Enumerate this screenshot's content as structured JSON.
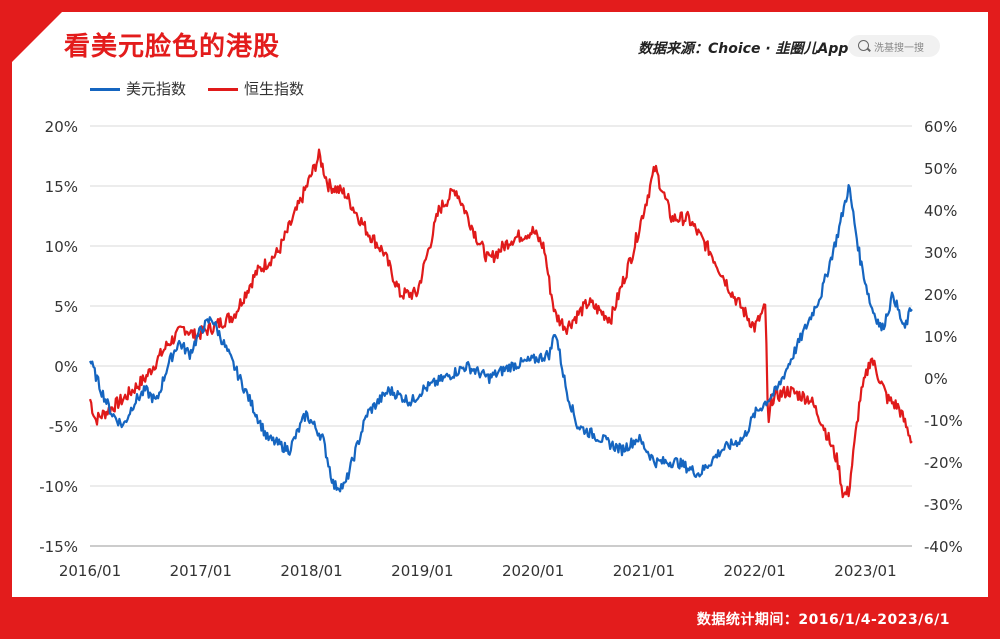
{
  "header": {
    "title": "看美元脸色的港股",
    "source": "数据来源：Choice · 韭圈儿App",
    "search_placeholder": "洗基搜一搜"
  },
  "footer": {
    "note": "数据统计期间：2016/1/4-2023/6/1"
  },
  "colors": {
    "usd": "#1565c0",
    "hsi": "#e01a1a",
    "accent": "#e31c1c"
  },
  "chart_data": {
    "type": "line",
    "x_ticks": [
      "2016/01",
      "2017/01",
      "2018/01",
      "2019/01",
      "2020/01",
      "2021/01",
      "2022/01",
      "2023/01"
    ],
    "y_left": {
      "ticks": [
        "20%",
        "15%",
        "10%",
        "5%",
        "0%",
        "-5%",
        "-10%",
        "-15%"
      ],
      "range": [
        -15,
        20
      ]
    },
    "y_right": {
      "ticks": [
        "60%",
        "50%",
        "40%",
        "30%",
        "20%",
        "10%",
        "0%",
        "-10%",
        "-20%",
        "-30%",
        "-40%"
      ],
      "range": [
        -40,
        60
      ]
    },
    "grid": true,
    "legend_position": "top-left",
    "series": [
      {
        "name": "美元指数",
        "axis": "left",
        "x": [
          2016.0,
          2016.1,
          2016.2,
          2016.3,
          2016.4,
          2016.5,
          2016.6,
          2016.7,
          2016.8,
          2016.9,
          2017.0,
          2017.1,
          2017.25,
          2017.4,
          2017.6,
          2017.8,
          2017.95,
          2018.1,
          2018.2,
          2018.3,
          2018.4,
          2018.5,
          2018.7,
          2018.9,
          2019.0,
          2019.2,
          2019.4,
          2019.6,
          2019.8,
          2020.0,
          2020.15,
          2020.2,
          2020.3,
          2020.4,
          2020.6,
          2020.8,
          2020.95,
          2021.1,
          2021.3,
          2021.5,
          2021.7,
          2021.9,
          2022.0,
          2022.1,
          2022.2,
          2022.4,
          2022.6,
          2022.75,
          2022.85,
          2022.95,
          2023.05,
          2023.15,
          2023.25,
          2023.35,
          2023.42
        ],
        "values": [
          0.5,
          -2,
          -4,
          -5,
          -3,
          -2,
          -3,
          0,
          2,
          1,
          3,
          4,
          1,
          -2,
          -6,
          -7,
          -4,
          -6,
          -10,
          -10,
          -7,
          -4,
          -2,
          -3,
          -2,
          -1,
          0,
          -1,
          0,
          0.5,
          1,
          3,
          -2,
          -5,
          -6,
          -7,
          -6,
          -8,
          -8,
          -9,
          -7,
          -6,
          -4,
          -3,
          -2,
          2,
          6,
          11,
          15,
          9,
          5,
          3,
          6,
          3,
          5
        ]
      },
      {
        "name": "恒生指数",
        "axis": "right",
        "x": [
          2016.0,
          2016.05,
          2016.15,
          2016.3,
          2016.5,
          2016.7,
          2016.85,
          2016.95,
          2017.1,
          2017.3,
          2017.5,
          2017.7,
          2017.9,
          2018.07,
          2018.15,
          2018.3,
          2018.5,
          2018.65,
          2018.8,
          2018.95,
          2019.15,
          2019.3,
          2019.5,
          2019.6,
          2019.8,
          2020.0,
          2020.1,
          2020.15,
          2020.2,
          2020.3,
          2020.5,
          2020.7,
          2020.9,
          2021.1,
          2021.25,
          2021.4,
          2021.6,
          2021.8,
          2022.0,
          2022.1,
          2022.12,
          2022.15,
          2022.3,
          2022.5,
          2022.6,
          2022.75,
          2022.8,
          2022.85,
          2022.95,
          2023.05,
          2023.2,
          2023.3,
          2023.42
        ],
        "values": [
          -5,
          -10,
          -8,
          -5,
          0,
          8,
          12,
          10,
          12,
          15,
          25,
          30,
          42,
          53,
          46,
          44,
          35,
          30,
          20,
          20,
          40,
          45,
          33,
          28,
          33,
          35,
          31,
          22,
          15,
          12,
          18,
          14,
          30,
          50,
          38,
          38,
          30,
          20,
          12,
          17,
          -13,
          -5,
          -3,
          -5,
          -10,
          -20,
          -28,
          -27,
          -5,
          5,
          -5,
          -7,
          -15
        ]
      }
    ]
  }
}
